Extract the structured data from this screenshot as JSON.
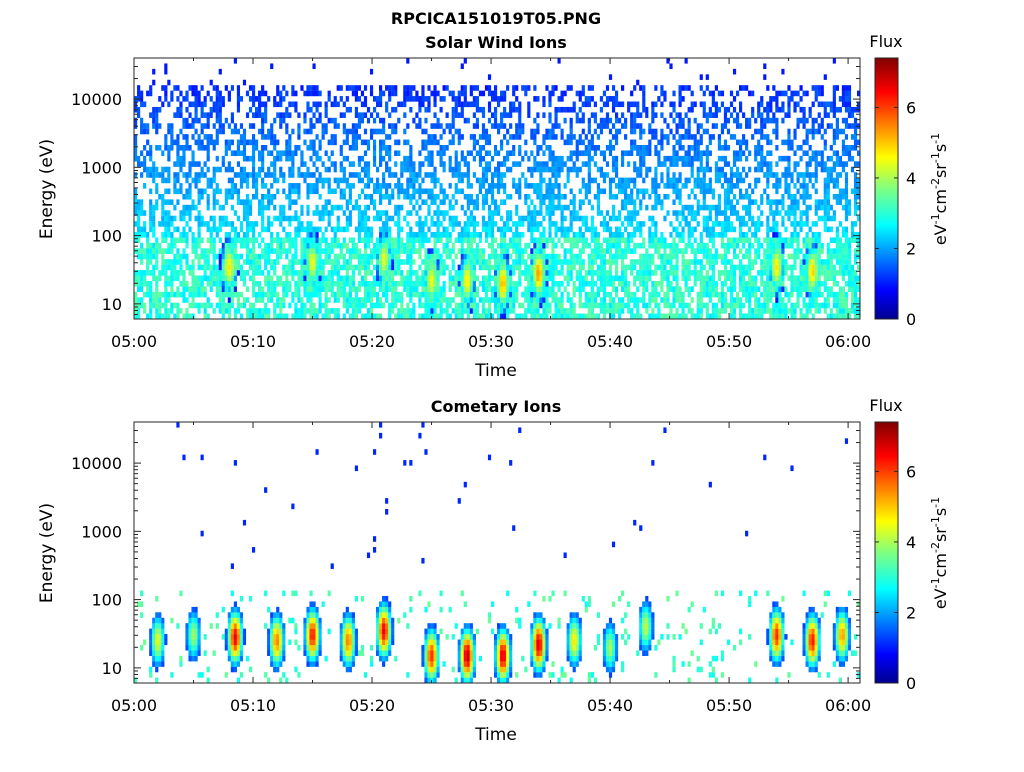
{
  "figure": {
    "title": "RPCICA151019T05.PNG"
  },
  "colormap": [
    "#00008f",
    "#0000ff",
    "#0080ff",
    "#00ffff",
    "#80ff80",
    "#ffff00",
    "#ff8000",
    "#ff0000",
    "#800000"
  ],
  "chart_data": [
    {
      "type": "heatmap",
      "title": "Solar Wind Ions",
      "xlabel": "Time",
      "ylabel": "Energy (eV)",
      "x_ticks": [
        "05:00",
        "05:10",
        "05:20",
        "05:30",
        "05:40",
        "05:50",
        "06:00"
      ],
      "x_range": [
        "05:00",
        "06:01"
      ],
      "y_scale": "log",
      "y_ticks": [
        "10",
        "100",
        "1000",
        "10000"
      ],
      "ylim": [
        6,
        40000
      ],
      "colorbar": {
        "title": "Flux",
        "label": "eV-1cm-2sr-1s-1",
        "ticks": [
          "0",
          "2",
          "4",
          "6"
        ],
        "range": [
          0,
          7.4
        ]
      },
      "features": {
        "noise_upper_energy_eV": 15000,
        "low_energy_cyan_band_eV": [
          6,
          100
        ],
        "bursts": [
          {
            "time": "05:08",
            "energy_eV": 35,
            "flux": 4.8
          },
          {
            "time": "05:15",
            "energy_eV": 40,
            "flux": 4.6
          },
          {
            "time": "05:21",
            "energy_eV": 45,
            "flux": 4.5
          },
          {
            "time": "05:25",
            "energy_eV": 22,
            "flux": 4.6
          },
          {
            "time": "05:28",
            "energy_eV": 22,
            "flux": 4.8
          },
          {
            "time": "05:31",
            "energy_eV": 20,
            "flux": 5.2
          },
          {
            "time": "05:34",
            "energy_eV": 28,
            "flux": 5.4
          },
          {
            "time": "05:54",
            "energy_eV": 35,
            "flux": 4.8
          },
          {
            "time": "05:57",
            "energy_eV": 30,
            "flux": 5.0
          }
        ]
      }
    },
    {
      "type": "heatmap",
      "title": "Cometary Ions",
      "xlabel": "Time",
      "ylabel": "Energy (eV)",
      "x_ticks": [
        "05:00",
        "05:10",
        "05:20",
        "05:30",
        "05:40",
        "05:50",
        "06:00"
      ],
      "x_range": [
        "05:00",
        "06:01"
      ],
      "y_scale": "log",
      "y_ticks": [
        "10",
        "100",
        "1000",
        "10000"
      ],
      "ylim": [
        6,
        40000
      ],
      "colorbar": {
        "title": "Flux",
        "label": "eV-1cm-2sr-1s-1",
        "ticks": [
          "0",
          "2",
          "4",
          "6"
        ],
        "range": [
          0,
          7.4
        ]
      },
      "features": {
        "bursts": [
          {
            "time": "05:02",
            "energy_eV": 25,
            "flux": 4.5
          },
          {
            "time": "05:05",
            "energy_eV": 30,
            "flux": 4.0
          },
          {
            "time": "05:08.5",
            "energy_eV": 28,
            "flux": 6.6
          },
          {
            "time": "05:12",
            "energy_eV": 25,
            "flux": 5.6
          },
          {
            "time": "05:15",
            "energy_eV": 30,
            "flux": 6.4
          },
          {
            "time": "05:18",
            "energy_eV": 25,
            "flux": 5.6
          },
          {
            "time": "05:21",
            "energy_eV": 35,
            "flux": 6.6
          },
          {
            "time": "05:25",
            "energy_eV": 15,
            "flux": 6.2
          },
          {
            "time": "05:28",
            "energy_eV": 15,
            "flux": 7.0
          },
          {
            "time": "05:31",
            "energy_eV": 15,
            "flux": 6.8
          },
          {
            "time": "05:34",
            "energy_eV": 22,
            "flux": 6.8
          },
          {
            "time": "05:37",
            "energy_eV": 25,
            "flux": 4.8
          },
          {
            "time": "05:40",
            "energy_eV": 20,
            "flux": 4.0
          },
          {
            "time": "05:43",
            "energy_eV": 40,
            "flux": 4.2
          },
          {
            "time": "05:54",
            "energy_eV": 30,
            "flux": 6.2
          },
          {
            "time": "05:57",
            "energy_eV": 25,
            "flux": 6.4
          },
          {
            "time": "05:59.5",
            "energy_eV": 30,
            "flux": 5.4
          }
        ]
      }
    }
  ]
}
